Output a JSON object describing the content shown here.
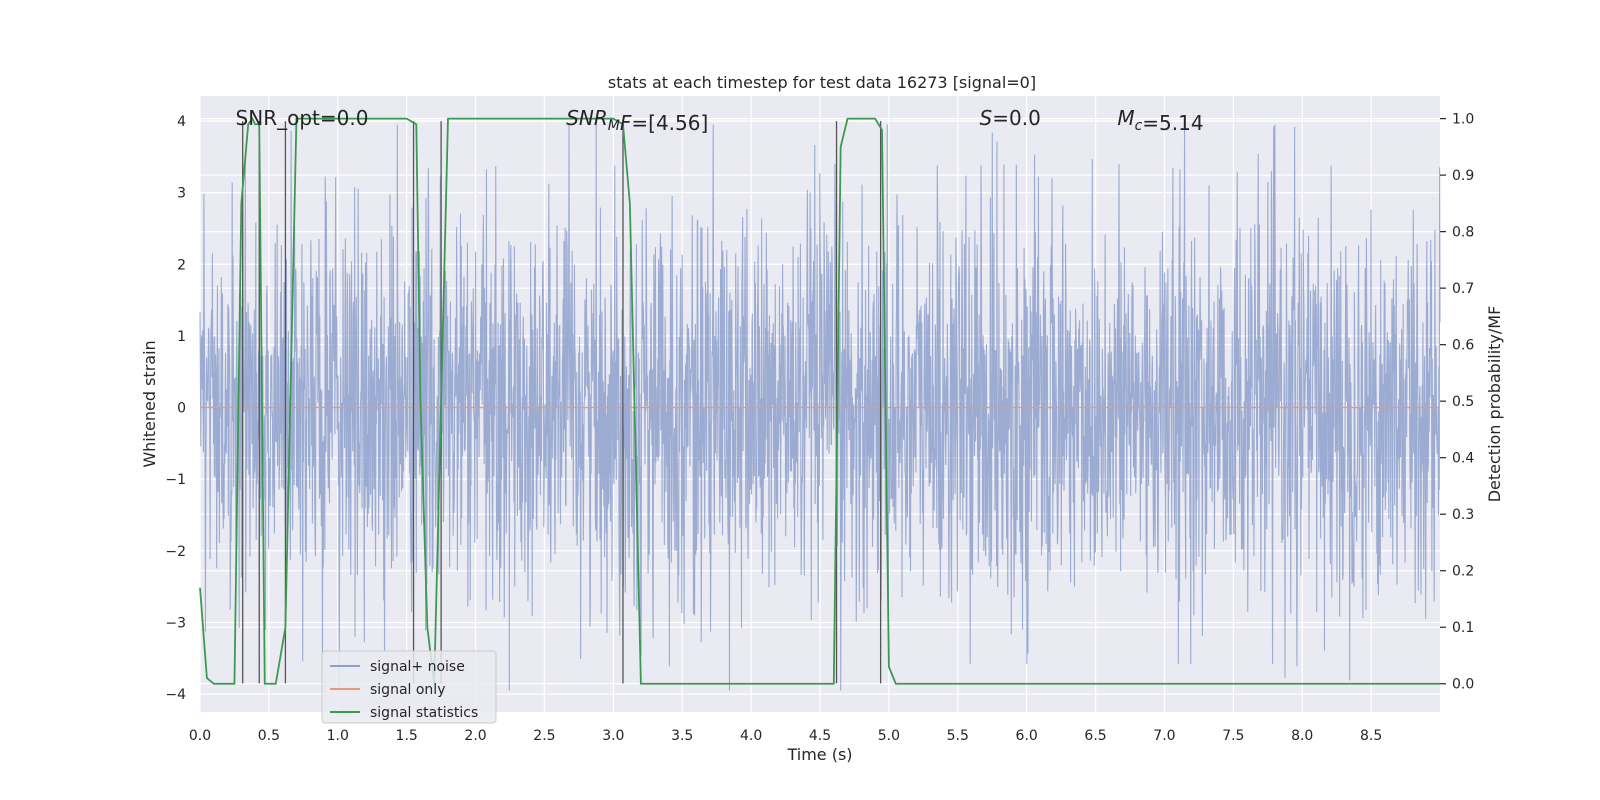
{
  "chart_data": {
    "type": "line",
    "title": "stats at each timestep for test data 16273 [signal=0]",
    "xlabel": "Time (s)",
    "ylabel": "Whitened strain",
    "ylabel_right": "Detection probability/MF",
    "xlim": [
      0.0,
      9.0
    ],
    "ylim": [
      -4.25,
      4.35
    ],
    "ylim_right": [
      -0.05,
      1.04
    ],
    "xticks": [
      "0.0",
      "0.5",
      "1.0",
      "1.5",
      "2.0",
      "2.5",
      "3.0",
      "3.5",
      "4.0",
      "4.5",
      "5.0",
      "5.5",
      "6.0",
      "6.5",
      "7.0",
      "7.5",
      "8.0",
      "8.5"
    ],
    "yticks": [
      "4",
      "3",
      "2",
      "1",
      "0",
      "−1",
      "−2",
      "−3",
      "−4"
    ],
    "yticks_right": [
      "1.0",
      "0.9",
      "0.8",
      "0.7",
      "0.6",
      "0.5",
      "0.4",
      "0.3",
      "0.2",
      "0.1",
      "0.0"
    ],
    "grid": true,
    "legend_position": "lower-left",
    "annotations": [
      {
        "x": 0.2,
        "text": "SNR_opt=0.0"
      },
      {
        "x": 2.6,
        "text": "SNR_MF=[4.56]"
      },
      {
        "x": 5.6,
        "text": "S=0.0"
      },
      {
        "x": 6.6,
        "text": "M_c=5.14"
      }
    ],
    "series": [
      {
        "name": "signal+ noise",
        "color": "#8da0cb",
        "noise_amplitude": 2.0,
        "axis": "left"
      },
      {
        "name": "signal only",
        "color": "#e79a7a",
        "values": 0.0,
        "axis": "left"
      },
      {
        "name": "signal statistics",
        "color": "#3c9a50",
        "axis": "right",
        "x": [
          0.0,
          0.05,
          0.1,
          0.2,
          0.25,
          0.3,
          0.35,
          0.38,
          0.4,
          0.43,
          0.47,
          0.5,
          0.55,
          0.62,
          0.7,
          0.8,
          1.0,
          1.5,
          1.57,
          1.6,
          1.65,
          1.7,
          1.75,
          1.8,
          1.9,
          2.5,
          3.0,
          3.07,
          3.12,
          3.2,
          3.25,
          3.4,
          4.0,
          4.5,
          4.6,
          4.65,
          4.7,
          4.8,
          4.9,
          4.95,
          5.0,
          5.05,
          5.1,
          6.0,
          7.0,
          8.0,
          9.0
        ],
        "values": [
          0.17,
          0.01,
          0.0,
          0.0,
          0.0,
          0.85,
          0.99,
          1.0,
          0.99,
          0.99,
          0.0,
          0.0,
          0.0,
          0.1,
          1.0,
          1.0,
          1.0,
          1.0,
          0.99,
          0.5,
          0.1,
          0.0,
          0.5,
          1.0,
          1.0,
          1.0,
          1.0,
          0.99,
          0.85,
          0.0,
          0.0,
          0.0,
          0.0,
          0.0,
          0.0,
          0.95,
          1.0,
          1.0,
          1.0,
          0.98,
          0.03,
          0.0,
          0.0,
          0.0,
          0.0,
          0.0,
          0.0
        ]
      }
    ],
    "vlines": [
      0.31,
      0.43,
      0.62,
      1.55,
      1.75,
      3.07,
      4.62,
      4.94
    ]
  }
}
